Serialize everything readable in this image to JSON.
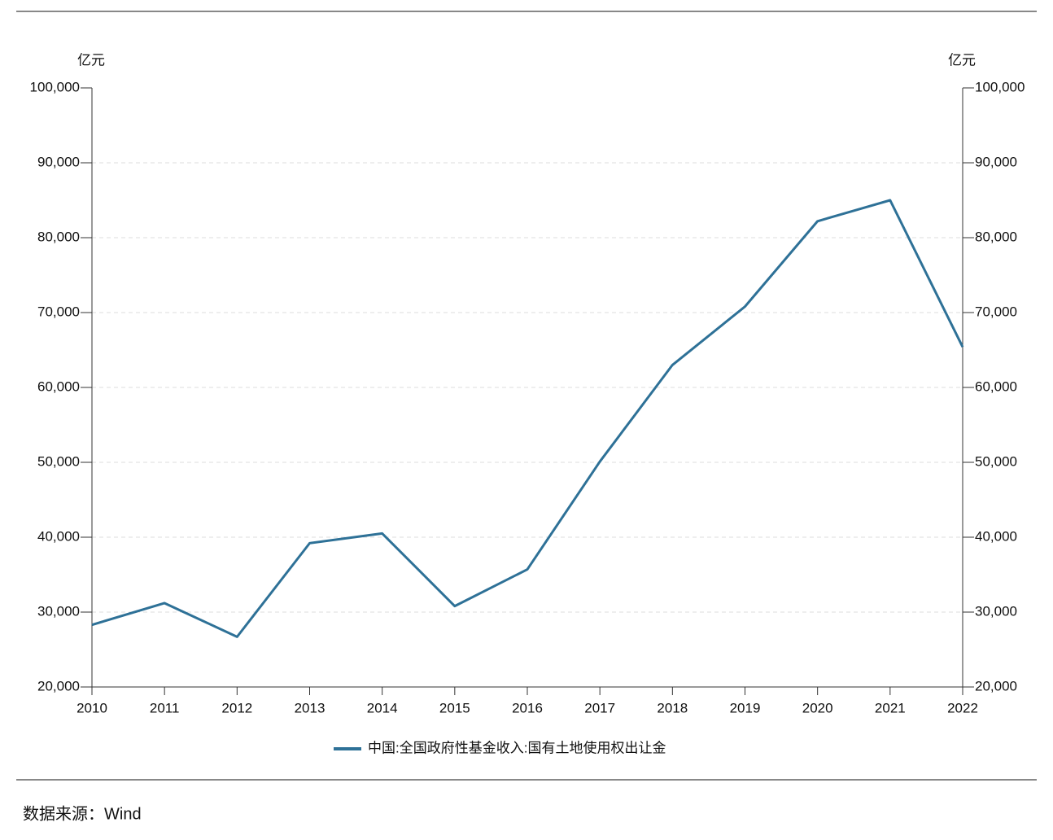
{
  "chart_data": {
    "type": "line",
    "y_unit": "亿元",
    "y2_unit": "亿元",
    "categories": [
      "2010",
      "2011",
      "2012",
      "2013",
      "2014",
      "2015",
      "2016",
      "2017",
      "2018",
      "2019",
      "2020",
      "2021",
      "2022"
    ],
    "series": [
      {
        "name": "中国:全国政府性基金收入:国有土地使用权出让金",
        "color": "#2e7197",
        "values": [
          28300,
          31200,
          26700,
          39200,
          40500,
          30800,
          35700,
          50100,
          63000,
          70800,
          82200,
          85000,
          65400
        ]
      }
    ],
    "ylim": [
      20000,
      100000
    ],
    "yticks": [
      {
        "value": 20000,
        "label": "20,000"
      },
      {
        "value": 30000,
        "label": "30,000"
      },
      {
        "value": 40000,
        "label": "40,000"
      },
      {
        "value": 50000,
        "label": "50,000"
      },
      {
        "value": 60000,
        "label": "60,000"
      },
      {
        "value": 70000,
        "label": "70,000"
      },
      {
        "value": 80000,
        "label": "80,000"
      },
      {
        "value": 90000,
        "label": "90,000"
      },
      {
        "value": 100000,
        "label": "100,000"
      }
    ],
    "y2lim": [
      20000,
      100000
    ],
    "y2ticks": [
      {
        "value": 20000,
        "label": "20,000"
      },
      {
        "value": 30000,
        "label": "30,000"
      },
      {
        "value": 40000,
        "label": "40,000"
      },
      {
        "value": 50000,
        "label": "50,000"
      },
      {
        "value": 60000,
        "label": "60,000"
      },
      {
        "value": 70000,
        "label": "70,000"
      },
      {
        "value": 80000,
        "label": "80,000"
      },
      {
        "value": 90000,
        "label": "90,000"
      },
      {
        "value": 100000,
        "label": "100,000"
      }
    ],
    "grid": true,
    "source": "数据来源：Wind"
  }
}
